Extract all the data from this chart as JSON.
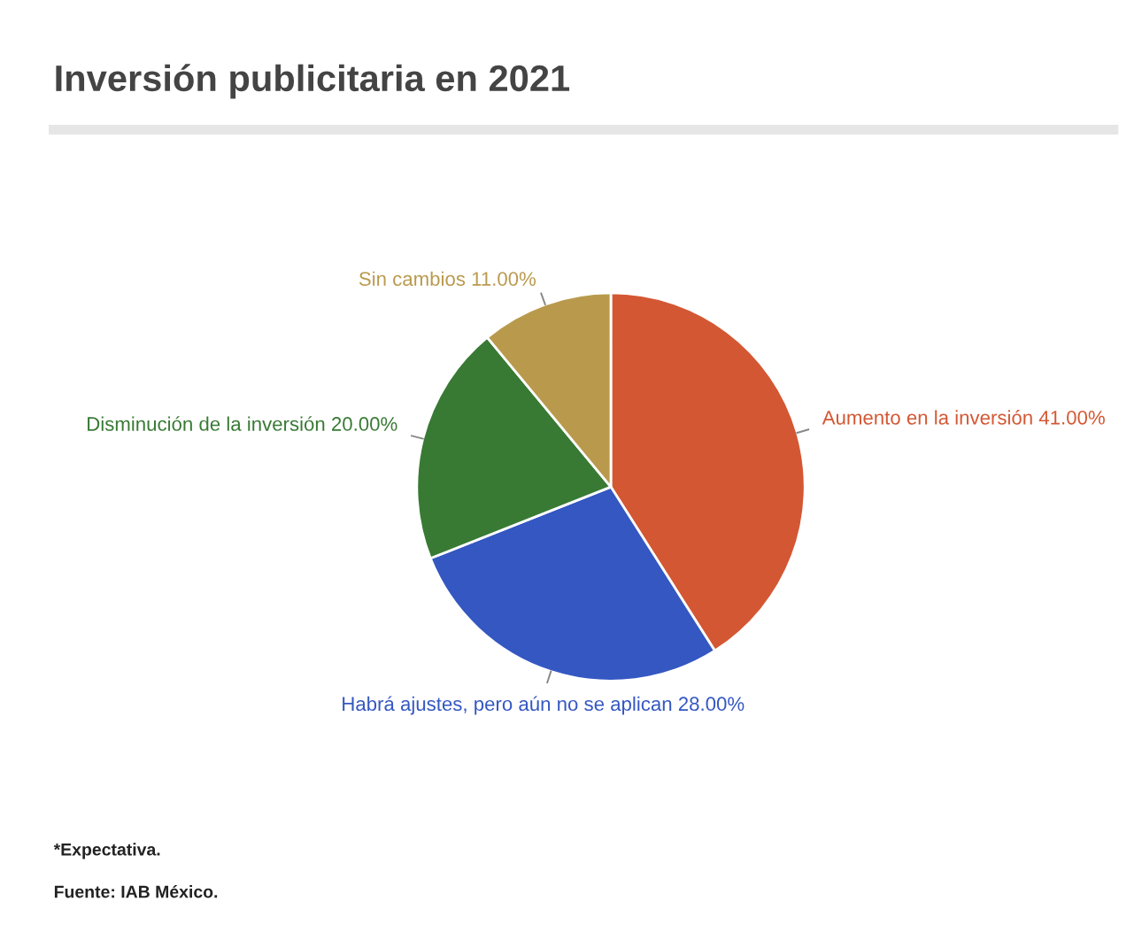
{
  "chart_data": {
    "type": "pie",
    "title": "Inversión publicitaria en 2021",
    "categories": [
      "Aumento en la inversión",
      "Habrá ajustes, pero aún no se aplican",
      "Disminución de la inversión",
      "Sin cambios"
    ],
    "values": [
      41,
      28,
      20,
      11
    ],
    "value_labels": [
      "41.00%",
      "28.00%",
      "20.00%",
      "11.00%"
    ],
    "colors": [
      "#d45733",
      "#3457c2",
      "#387a34",
      "#b99a4d"
    ],
    "legend": false,
    "annotations": [
      "*Expectativa.",
      "Fuente: IAB México."
    ]
  }
}
